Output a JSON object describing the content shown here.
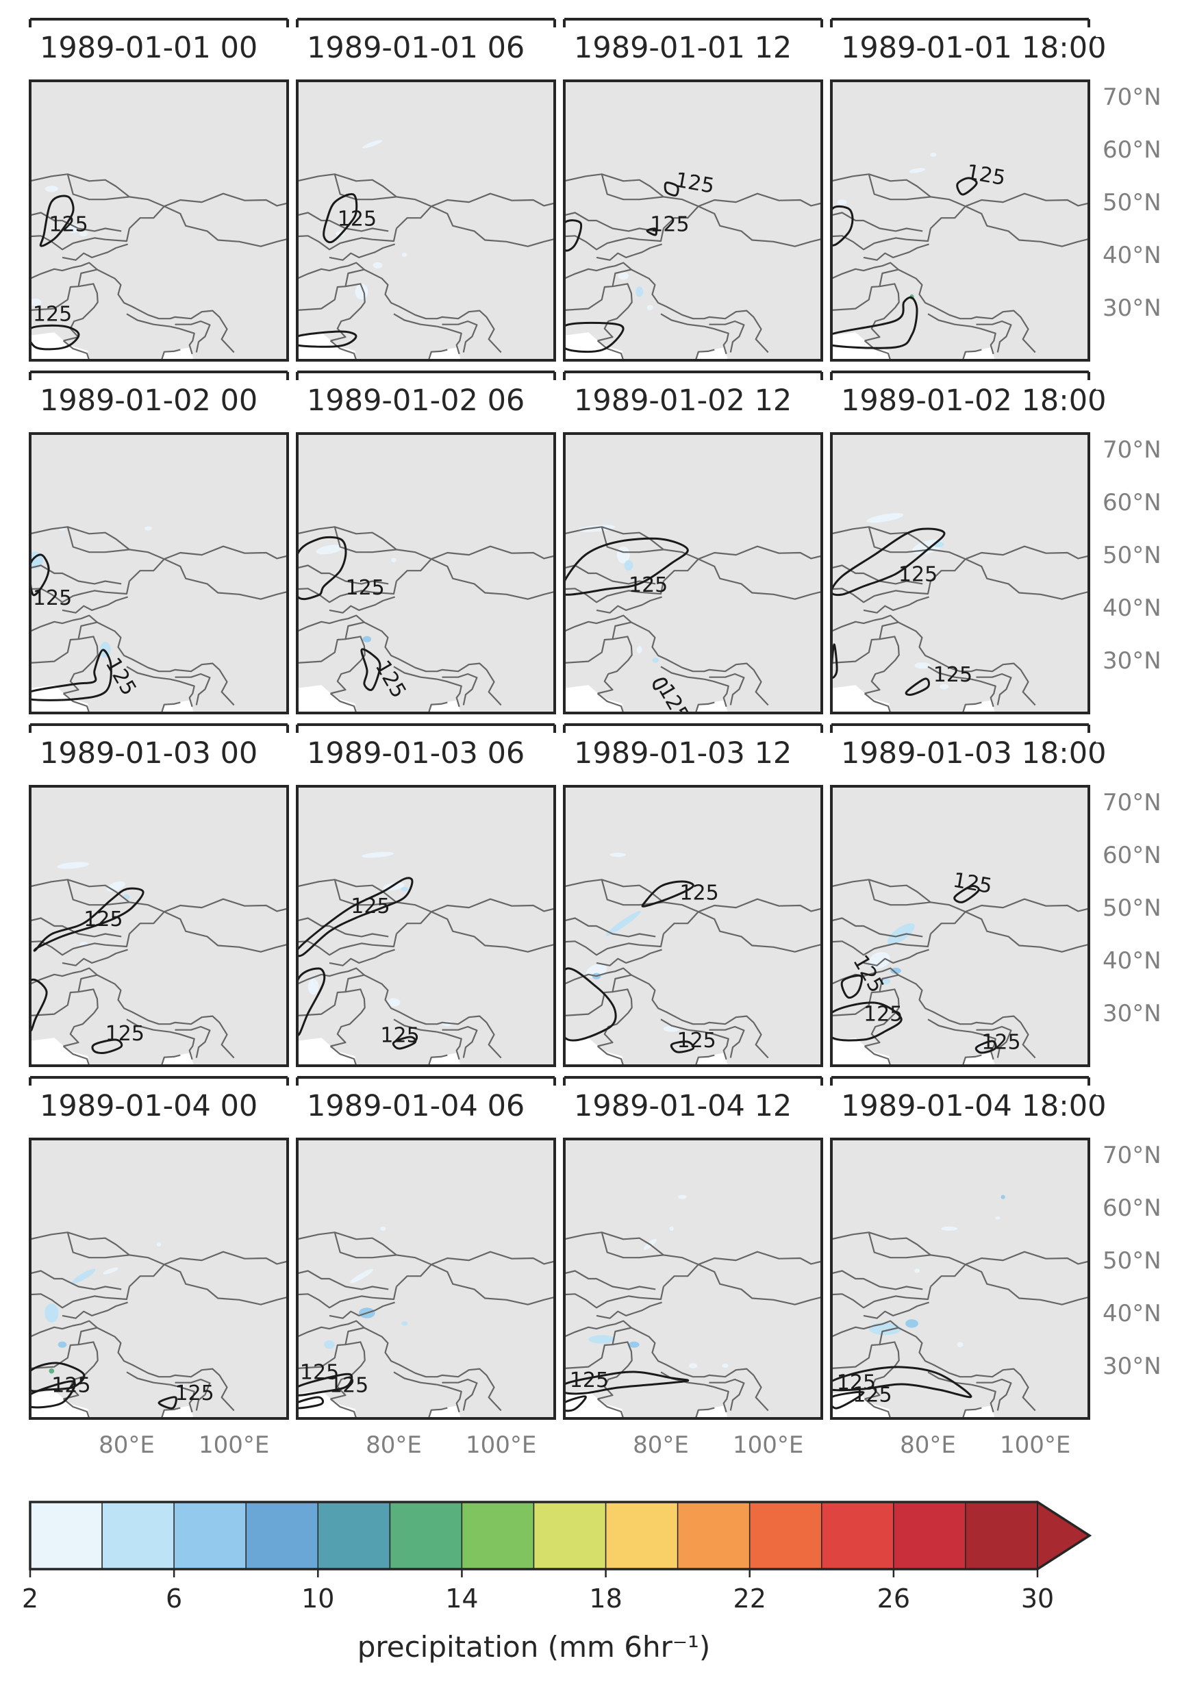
{
  "panels": [
    {
      "title": "1989-01-01 00"
    },
    {
      "title": "1989-01-01 06"
    },
    {
      "title": "1989-01-01 12"
    },
    {
      "title": "1989-01-01 18:00"
    },
    {
      "title": "1989-01-02 00"
    },
    {
      "title": "1989-01-02 06"
    },
    {
      "title": "1989-01-02 12"
    },
    {
      "title": "1989-01-02 18:00"
    },
    {
      "title": "1989-01-03 00"
    },
    {
      "title": "1989-01-03 06"
    },
    {
      "title": "1989-01-03 12"
    },
    {
      "title": "1989-01-03 18:00"
    },
    {
      "title": "1989-01-04 00"
    },
    {
      "title": "1989-01-04 06"
    },
    {
      "title": "1989-01-04 12"
    },
    {
      "title": "1989-01-04 18:00"
    }
  ],
  "lat_labels": [
    "70°N",
    "60°N",
    "50°N",
    "40°N",
    "30°N"
  ],
  "lon_labels": [
    "80°E",
    "100°E"
  ],
  "contour_label": "125",
  "colorbar": {
    "label": "precipitation (mm 6hr⁻¹)",
    "ticks": [
      "2",
      "6",
      "10",
      "14",
      "18",
      "22",
      "26",
      "30"
    ],
    "bins": [
      2,
      4,
      6,
      8,
      10,
      12,
      14,
      16,
      18,
      20,
      22,
      24,
      26,
      28,
      30
    ],
    "colors": [
      "#eaf4fb",
      "#bde3f6",
      "#93c9ec",
      "#6aa7d6",
      "#54a0b1",
      "#5ab07d",
      "#7fc45e",
      "#d6df6a",
      "#f8d067",
      "#f59b4d",
      "#ee6b3f",
      "#e04440",
      "#c82f3b",
      "#a8292f"
    ],
    "extend_color": "#a8292f"
  },
  "colors": {
    "land": "#e5e5e5",
    "ocean": "#ffffff",
    "border": "#666666",
    "contour": "#1a1a1a",
    "frame": "#262626"
  }
}
